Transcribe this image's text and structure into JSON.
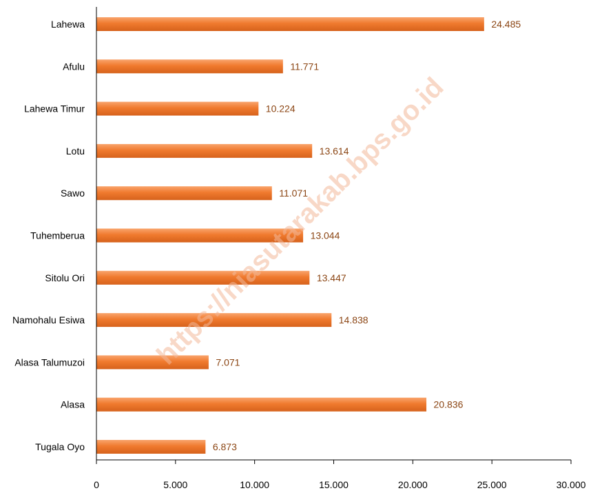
{
  "chart_data": {
    "type": "bar",
    "orientation": "horizontal",
    "categories": [
      "Lahewa",
      "Afulu",
      "Lahewa Timur",
      "Lotu",
      "Sawo",
      "Tuhemberua",
      "Sitolu Ori",
      "Namohalu Esiwa",
      "Alasa Talumuzoi",
      "Alasa",
      "Tugala Oyo"
    ],
    "values": [
      24485,
      11771,
      10224,
      13614,
      11071,
      13044,
      13447,
      14838,
      7071,
      20836,
      6873
    ],
    "value_labels": [
      "24.485",
      "11.771",
      "10.224",
      "13.614",
      "11.071",
      "13.044",
      "13.447",
      "14.838",
      "7.071",
      "20.836",
      "6.873"
    ],
    "xlim": [
      0,
      30000
    ],
    "x_ticks": [
      0,
      5000,
      10000,
      15000,
      20000,
      25000,
      30000
    ],
    "x_tick_labels": [
      "0",
      "5.000",
      "10.000",
      "15.000",
      "20.000",
      "25.000",
      "30.000"
    ],
    "grid": false,
    "legend": "none",
    "colors": {
      "bar": "#f07a2e",
      "bar_light": "#f9a46c",
      "bar_dark": "#d6621c",
      "data_label": "#8b4513",
      "axis": "#000000"
    }
  },
  "watermark": "https://niasutarakab.bps.go.id"
}
